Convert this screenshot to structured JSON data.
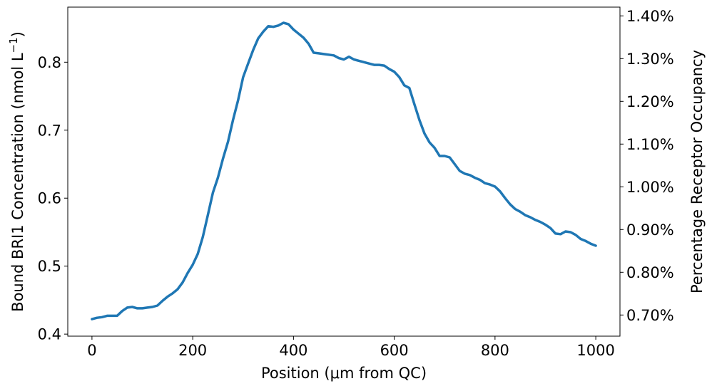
{
  "chart_data": {
    "type": "line",
    "title": "",
    "xlabel": "Position (μm from QC)",
    "ylabel": "Bound BRI1 Concentration (nmol L⁻¹)",
    "ylabel_right": "Percentage Receptor Occupancy",
    "xlim": [
      -48,
      1048
    ],
    "ylim": [
      0.397,
      0.881
    ],
    "ylim_right": [
      0.6505,
      1.4205
    ],
    "x_ticks": [
      0,
      200,
      400,
      600,
      800,
      1000
    ],
    "x_tick_labels": [
      "0",
      "200",
      "400",
      "600",
      "800",
      "1000"
    ],
    "y_ticks": [
      0.4,
      0.5,
      0.6,
      0.7,
      0.8
    ],
    "y_tick_labels": [
      "0.4",
      "0.5",
      "0.6",
      "0.7",
      "0.8"
    ],
    "y_right_ticks": [
      0.7,
      0.8,
      0.9,
      1.0,
      1.1,
      1.2,
      1.3,
      1.4
    ],
    "y_right_tick_labels": [
      "0.70%",
      "0.80%",
      "0.90%",
      "1.00%",
      "1.10%",
      "1.20%",
      "1.30%",
      "1.40%"
    ],
    "grid": false,
    "legend": "none",
    "series": [
      {
        "color": "#1f77b4",
        "x": [
          0,
          10,
          20,
          30,
          40,
          50,
          60,
          70,
          80,
          90,
          100,
          110,
          120,
          130,
          140,
          150,
          160,
          170,
          180,
          190,
          200,
          210,
          220,
          230,
          240,
          250,
          260,
          270,
          280,
          290,
          300,
          310,
          320,
          330,
          340,
          350,
          360,
          370,
          380,
          390,
          400,
          410,
          420,
          430,
          440,
          450,
          460,
          470,
          480,
          490,
          500,
          510,
          520,
          530,
          540,
          550,
          560,
          570,
          580,
          590,
          600,
          610,
          620,
          630,
          640,
          650,
          660,
          670,
          680,
          690,
          700,
          710,
          720,
          730,
          740,
          750,
          760,
          770,
          780,
          790,
          800,
          810,
          820,
          830,
          840,
          850,
          860,
          870,
          880,
          890,
          900,
          910,
          920,
          930,
          940,
          950,
          960,
          970,
          980,
          990,
          1000
        ],
        "values": [
          0.422,
          0.424,
          0.425,
          0.427,
          0.427,
          0.427,
          0.434,
          0.439,
          0.44,
          0.438,
          0.438,
          0.439,
          0.44,
          0.442,
          0.449,
          0.455,
          0.46,
          0.466,
          0.476,
          0.49,
          0.502,
          0.518,
          0.543,
          0.575,
          0.608,
          0.63,
          0.658,
          0.683,
          0.715,
          0.744,
          0.778,
          0.798,
          0.818,
          0.835,
          0.845,
          0.853,
          0.852,
          0.854,
          0.858,
          0.856,
          0.848,
          0.842,
          0.836,
          0.827,
          0.814,
          0.813,
          0.812,
          0.811,
          0.81,
          0.806,
          0.804,
          0.808,
          0.804,
          0.802,
          0.8,
          0.798,
          0.796,
          0.796,
          0.795,
          0.79,
          0.786,
          0.778,
          0.766,
          0.762,
          0.738,
          0.715,
          0.695,
          0.682,
          0.674,
          0.662,
          0.662,
          0.66,
          0.65,
          0.64,
          0.636,
          0.634,
          0.63,
          0.627,
          0.622,
          0.62,
          0.617,
          0.61,
          0.6,
          0.591,
          0.584,
          0.58,
          0.575,
          0.572,
          0.568,
          0.565,
          0.561,
          0.556,
          0.548,
          0.547,
          0.551,
          0.55,
          0.546,
          0.54,
          0.537,
          0.533,
          0.53
        ]
      }
    ]
  }
}
